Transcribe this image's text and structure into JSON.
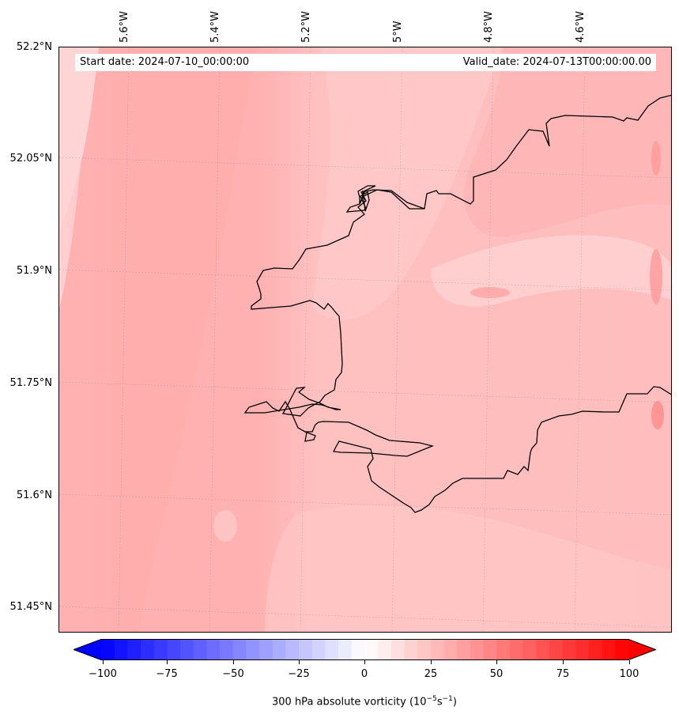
{
  "map": {
    "start_date": "Start date: 2024-07-10_00:00:00",
    "valid_date": "Valid_date: 2024-07-13T00:00:00.00",
    "lon_labels": [
      "5.6°W",
      "5.4°W",
      "5.2°W",
      "5°W",
      "4.8°W",
      "4.6°W"
    ],
    "lat_labels": [
      "52.2°N",
      "52.05°N",
      "51.9°N",
      "51.75°N",
      "51.6°N",
      "51.45°N"
    ],
    "field_base_color": "#ffc0c0",
    "field_dark_color": "#ffb0b0",
    "field_light_color": "#ffd2d2",
    "coastline_color": "#000000"
  },
  "colorbar": {
    "label_main": "300 hPa absolute vorticity (10",
    "label_exp1": "−5",
    "label_mid": "s",
    "label_exp2": "−1",
    "label_end": ")",
    "ticks": [
      "−100",
      "−75",
      "−50",
      "−25",
      "0",
      "25",
      "50",
      "75",
      "100"
    ],
    "min": -100,
    "max": 100,
    "low_color": "#0000ff",
    "mid_color": "#ffffff",
    "high_color": "#ff0000"
  }
}
